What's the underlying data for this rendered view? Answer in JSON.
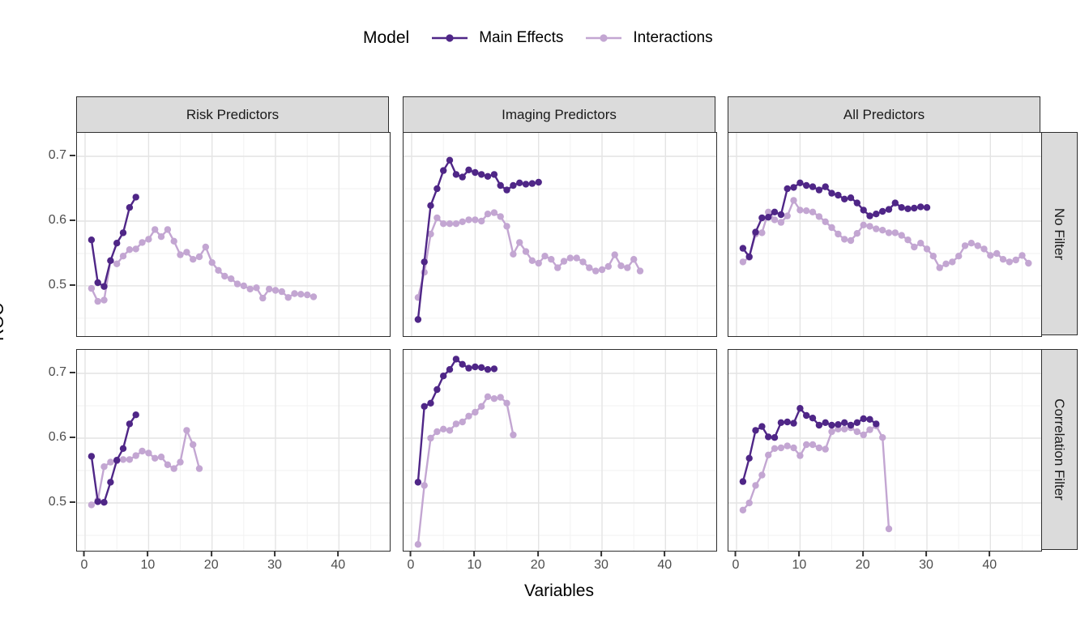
{
  "legend": {
    "title": "Model",
    "items": [
      {
        "label": "Main Effects",
        "color": "#4F2687"
      },
      {
        "label": "Interactions",
        "color": "#C3A6D2"
      }
    ]
  },
  "axes": {
    "x_label": "Variables",
    "y_label": "ROC",
    "x_ticks": [
      0,
      10,
      20,
      30,
      40
    ],
    "y_ticks": [
      "0.7",
      "0.6",
      "0.5"
    ],
    "y_tick_values": [
      0.7,
      0.6,
      0.5
    ]
  },
  "facets": {
    "cols": [
      "Risk Predictors",
      "Imaging Predictors",
      "All Predictors"
    ],
    "rows": [
      "No Filter",
      "Correlation Filter"
    ]
  },
  "chart_data": {
    "type": "line",
    "title": "",
    "xlabel": "Variables",
    "ylabel": "ROC",
    "xlim": [
      -1.28,
      48.0
    ],
    "grid": {
      "x_major": [
        0,
        10,
        20,
        30,
        40
      ],
      "x_minor": [
        5,
        15,
        25,
        35,
        45
      ],
      "y_major": [
        0.5,
        0.6,
        0.7
      ],
      "y_minor": [
        0.45,
        0.55,
        0.65
      ],
      "major_color": "#E4E4E4",
      "minor_color": "#F2F2F2"
    },
    "rows": [
      {
        "label": "No Filter",
        "ylim": [
          0.4224,
          0.7363
        ]
      },
      {
        "label": "Correlation Filter",
        "ylim": [
          0.4262,
          0.7362
        ]
      }
    ],
    "panels": [
      {
        "facet_col": "Risk Predictors",
        "facet_row": "No Filter",
        "col": 0,
        "row": 0,
        "series": [
          {
            "model": "Interactions",
            "x_start": 1,
            "roc": [
              0.496,
              0.476,
              0.478,
              0.539,
              0.534,
              0.546,
              0.556,
              0.557,
              0.567,
              0.572,
              0.587,
              0.576,
              0.587,
              0.569,
              0.548,
              0.552,
              0.541,
              0.545,
              0.56,
              0.536,
              0.524,
              0.515,
              0.511,
              0.503,
              0.5,
              0.495,
              0.497,
              0.481,
              0.495,
              0.493,
              0.491,
              0.482,
              0.488,
              0.487,
              0.486,
              0.483
            ]
          },
          {
            "model": "Main Effects",
            "x_start": 1,
            "roc": [
              0.571,
              0.505,
              0.499,
              0.539,
              0.566,
              0.582,
              0.621,
              0.637
            ]
          }
        ]
      },
      {
        "facet_col": "Imaging Predictors",
        "facet_row": "No Filter",
        "col": 1,
        "row": 0,
        "series": [
          {
            "model": "Interactions",
            "x_start": 1,
            "roc": [
              0.482,
              0.521,
              0.58,
              0.605,
              0.596,
              0.596,
              0.596,
              0.599,
              0.602,
              0.602,
              0.6,
              0.611,
              0.613,
              0.607,
              0.592,
              0.549,
              0.567,
              0.553,
              0.539,
              0.535,
              0.546,
              0.541,
              0.528,
              0.538,
              0.543,
              0.543,
              0.537,
              0.528,
              0.523,
              0.525,
              0.53,
              0.548,
              0.531,
              0.528,
              0.541,
              0.523
            ]
          },
          {
            "model": "Main Effects",
            "x_start": 1,
            "roc": [
              0.448,
              0.537,
              0.624,
              0.65,
              0.678,
              0.694,
              0.672,
              0.668,
              0.679,
              0.675,
              0.672,
              0.669,
              0.672,
              0.655,
              0.648,
              0.655,
              0.659,
              0.657,
              0.658,
              0.66
            ]
          }
        ]
      },
      {
        "facet_col": "All Predictors",
        "facet_row": "No Filter",
        "col": 2,
        "row": 0,
        "series": [
          {
            "model": "Interactions",
            "x_start": 1,
            "roc": [
              0.537,
              0.544,
              0.58,
              0.582,
              0.614,
              0.602,
              0.598,
              0.608,
              0.632,
              0.617,
              0.616,
              0.614,
              0.607,
              0.599,
              0.59,
              0.58,
              0.572,
              0.57,
              0.581,
              0.594,
              0.592,
              0.588,
              0.586,
              0.582,
              0.582,
              0.578,
              0.571,
              0.56,
              0.566,
              0.557,
              0.546,
              0.528,
              0.534,
              0.537,
              0.546,
              0.562,
              0.566,
              0.562,
              0.557,
              0.547,
              0.55,
              0.541,
              0.537,
              0.54,
              0.547,
              0.535
            ]
          },
          {
            "model": "Main Effects",
            "x_start": 1,
            "roc": [
              0.558,
              0.545,
              0.583,
              0.605,
              0.606,
              0.614,
              0.61,
              0.65,
              0.652,
              0.659,
              0.655,
              0.653,
              0.648,
              0.653,
              0.643,
              0.64,
              0.634,
              0.636,
              0.628,
              0.617,
              0.608,
              0.611,
              0.615,
              0.618,
              0.628,
              0.621,
              0.619,
              0.62,
              0.622,
              0.621
            ]
          }
        ]
      },
      {
        "facet_col": "Risk Predictors",
        "facet_row": "Correlation Filter",
        "col": 0,
        "row": 1,
        "series": [
          {
            "model": "Interactions",
            "x_start": 1,
            "roc": [
              0.497,
              0.504,
              0.556,
              0.563,
              0.565,
              0.567,
              0.567,
              0.573,
              0.58,
              0.577,
              0.569,
              0.571,
              0.559,
              0.553,
              0.563,
              0.612,
              0.59,
              0.553
            ]
          },
          {
            "model": "Main Effects",
            "x_start": 1,
            "roc": [
              0.572,
              0.502,
              0.501,
              0.532,
              0.566,
              0.584,
              0.622,
              0.636
            ]
          }
        ]
      },
      {
        "facet_col": "Imaging Predictors",
        "facet_row": "Correlation Filter",
        "col": 1,
        "row": 1,
        "series": [
          {
            "model": "Interactions",
            "x_start": 1,
            "roc": [
              0.436,
              0.527,
              0.6,
              0.61,
              0.614,
              0.612,
              0.622,
              0.625,
              0.634,
              0.64,
              0.649,
              0.664,
              0.661,
              0.663,
              0.654,
              0.605
            ]
          },
          {
            "model": "Main Effects",
            "x_start": 1,
            "roc": [
              0.532,
              0.649,
              0.654,
              0.675,
              0.696,
              0.706,
              0.722,
              0.714,
              0.708,
              0.71,
              0.709,
              0.706,
              0.707
            ]
          }
        ]
      },
      {
        "facet_col": "All Predictors",
        "facet_row": "Correlation Filter",
        "col": 2,
        "row": 1,
        "series": [
          {
            "model": "Interactions",
            "x_start": 1,
            "roc": [
              0.489,
              0.5,
              0.527,
              0.543,
              0.574,
              0.584,
              0.585,
              0.588,
              0.585,
              0.573,
              0.59,
              0.59,
              0.585,
              0.583,
              0.61,
              0.614,
              0.614,
              0.616,
              0.61,
              0.605,
              0.613,
              0.619,
              0.601,
              0.46
            ]
          },
          {
            "model": "Main Effects",
            "x_start": 1,
            "roc": [
              0.533,
              0.569,
              0.612,
              0.618,
              0.602,
              0.601,
              0.624,
              0.625,
              0.623,
              0.646,
              0.635,
              0.631,
              0.62,
              0.624,
              0.62,
              0.621,
              0.624,
              0.62,
              0.624,
              0.63,
              0.629,
              0.622
            ]
          }
        ]
      }
    ],
    "legend_position": "top",
    "point_radius": 4.2,
    "line_width": 2.4
  }
}
